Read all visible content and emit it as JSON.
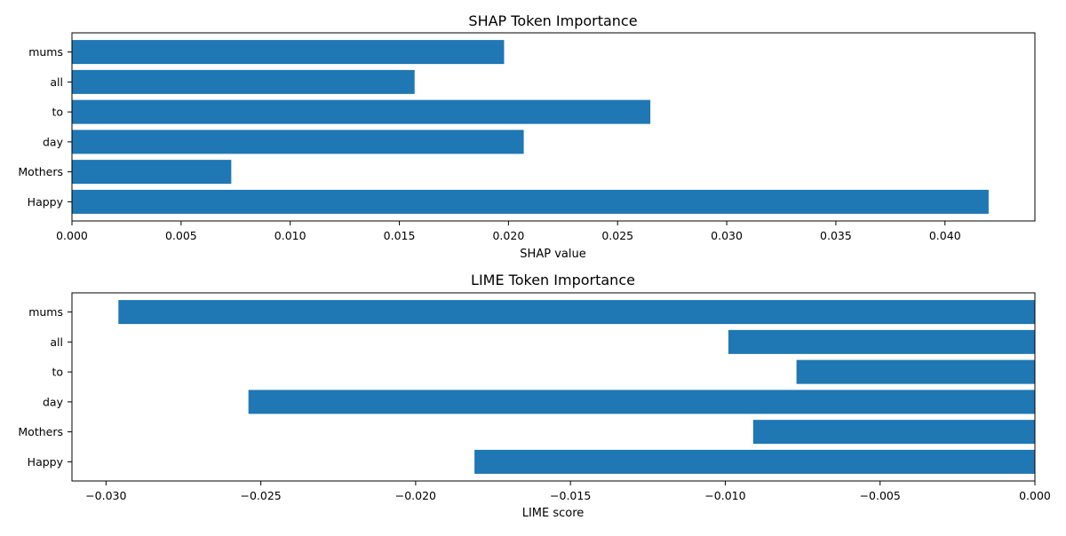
{
  "chart_data": [
    {
      "type": "bar",
      "orientation": "horizontal",
      "title": "SHAP Token Importance",
      "xlabel": "SHAP value",
      "ylabel": "",
      "categories": [
        "Happy",
        "Mothers",
        "day",
        "to",
        "all",
        "mums"
      ],
      "values": [
        0.042,
        0.0073,
        0.0207,
        0.0265,
        0.0157,
        0.0198
      ],
      "xlim": [
        0,
        0.04412
      ],
      "xticks": [
        0.0,
        0.005,
        0.01,
        0.015,
        0.02,
        0.025,
        0.03,
        0.035,
        0.04
      ],
      "xtick_labels": [
        "0.000",
        "0.005",
        "0.010",
        "0.015",
        "0.020",
        "0.025",
        "0.030",
        "0.035",
        "0.040"
      ],
      "bar_color": "#1f77b4",
      "grid": false,
      "legend": "none"
    },
    {
      "type": "bar",
      "orientation": "horizontal",
      "title": "LIME Token Importance",
      "xlabel": "LIME score",
      "ylabel": "",
      "categories": [
        "Happy",
        "Mothers",
        "day",
        "to",
        "all",
        "mums"
      ],
      "values": [
        -0.0181,
        -0.0091,
        -0.0254,
        -0.0077,
        -0.0099,
        -0.0296
      ],
      "xlim": [
        -0.0311,
        0
      ],
      "xticks": [
        -0.03,
        -0.025,
        -0.02,
        -0.015,
        -0.01,
        -0.005,
        0.0
      ],
      "xtick_labels": [
        "−0.030",
        "−0.025",
        "−0.020",
        "−0.015",
        "−0.010",
        "−0.005",
        "0.000"
      ],
      "bar_color": "#1f77b4",
      "grid": false,
      "legend": "none"
    }
  ]
}
